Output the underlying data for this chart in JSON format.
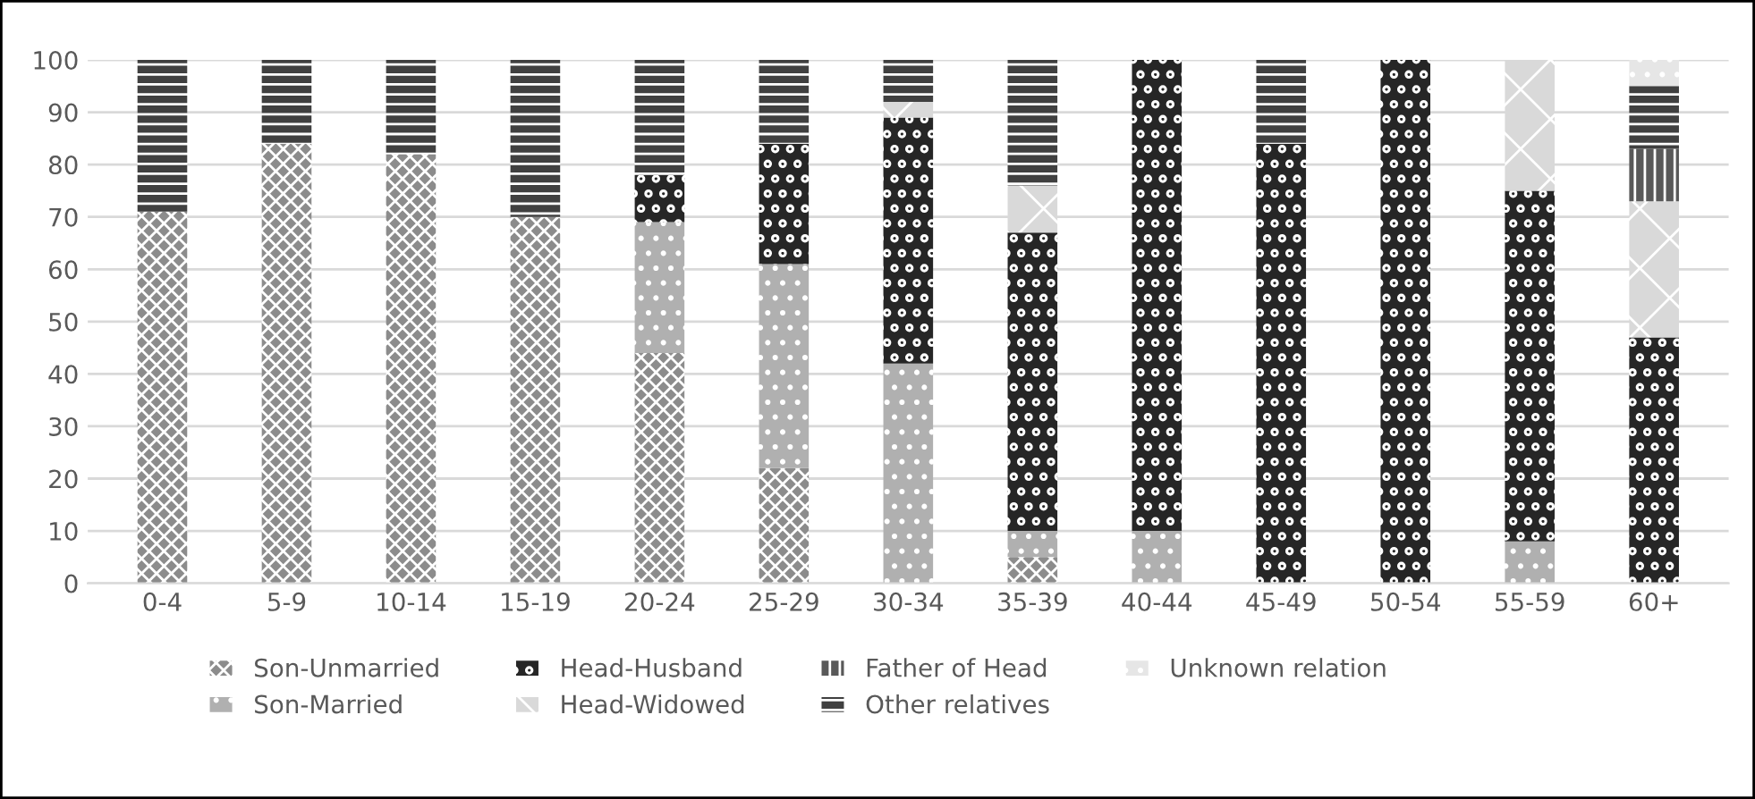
{
  "chart_data": {
    "type": "bar",
    "stacked": true,
    "categories": [
      "0-4",
      "5-9",
      "10-14",
      "15-19",
      "20-24",
      "25-29",
      "30-34",
      "35-39",
      "40-44",
      "45-49",
      "50-54",
      "55-59",
      "60+"
    ],
    "series": [
      {
        "name": "Son-Unmarried",
        "color": "#8c8c8c",
        "values": [
          71,
          84,
          82,
          70,
          44,
          22,
          0,
          5,
          0,
          0,
          0,
          0,
          0
        ]
      },
      {
        "name": "Son-Married",
        "color": "#b0b0b0",
        "values": [
          0,
          0,
          0,
          0,
          25,
          39,
          42,
          5,
          10,
          0,
          0,
          8,
          0
        ]
      },
      {
        "name": "Head-Husband",
        "color": "#262626",
        "values": [
          0,
          0,
          0,
          0,
          9,
          23,
          47,
          57,
          90,
          84,
          100,
          67,
          47
        ]
      },
      {
        "name": "Head-Widowed",
        "color": "#d9d9d9",
        "values": [
          0,
          0,
          0,
          0,
          0,
          0,
          3,
          9,
          0,
          0,
          0,
          25,
          26
        ]
      },
      {
        "name": "Father of Head",
        "color": "#595959",
        "values": [
          0,
          0,
          0,
          0,
          0,
          0,
          0,
          0,
          0,
          0,
          0,
          0,
          10
        ]
      },
      {
        "name": "Other relatives",
        "color": "#404040",
        "values": [
          29,
          16,
          18,
          30,
          22,
          16,
          8,
          24,
          0,
          16,
          0,
          0,
          12
        ]
      },
      {
        "name": "Unknown relation",
        "color": "#e6e6e6",
        "values": [
          0,
          0,
          0,
          0,
          0,
          0,
          0,
          0,
          0,
          0,
          0,
          0,
          5
        ]
      }
    ],
    "ylim": [
      0,
      100
    ],
    "yticks": [
      0,
      10,
      20,
      30,
      40,
      50,
      60,
      70,
      80,
      90,
      100
    ],
    "grid": "y",
    "legend": "bottom"
  }
}
